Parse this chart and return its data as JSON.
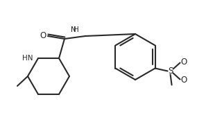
{
  "bg_color": "#ffffff",
  "line_color": "#2a2a2a",
  "line_width": 1.5,
  "font_size": 7.5,
  "figsize": [
    2.84,
    1.63
  ],
  "dpi": 100,
  "xlim": [
    0,
    284
  ],
  "ylim": [
    0,
    163
  ]
}
